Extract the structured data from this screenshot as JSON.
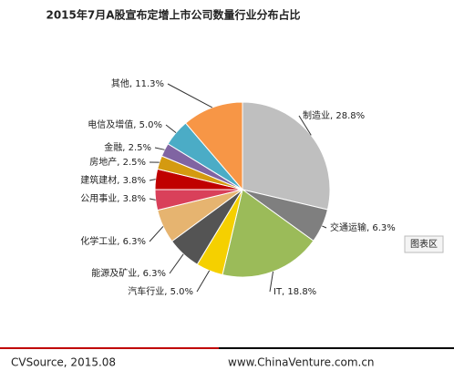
{
  "chart_data": {
    "type": "pie",
    "title": "2015年7月A股宣布定增上市公司数量行业分布占比",
    "values": [
      28.8,
      6.3,
      18.8,
      5.0,
      6.3,
      6.3,
      3.8,
      3.8,
      2.5,
      2.5,
      5.0,
      11.3
    ],
    "value_labels": [
      "制造业, 28.8%",
      "交通运输, 6.3%",
      "IT, 18.8%",
      "汽车行业, 5.0%",
      "能源及矿业, 6.3%",
      "化学工业, 6.3%",
      "公用事业, 3.8%",
      "建筑建材, 3.8%",
      "房地产, 2.5%",
      "金融, 2.5%",
      "电信及增值, 5.0%",
      "其他, 11.3%"
    ],
    "colors": [
      "#bfbfbf",
      "#7f7f7f",
      "#9bbb59",
      "#f5d000",
      "#545454",
      "#e6b470",
      "#d9405a",
      "#c00000",
      "#d49a10",
      "#8064a2",
      "#4bacc6",
      "#f79646"
    ],
    "button": "图表区"
  },
  "footer": {
    "source": "CVSource, 2015.08",
    "site": "www.ChinaVenture.com.cn"
  }
}
